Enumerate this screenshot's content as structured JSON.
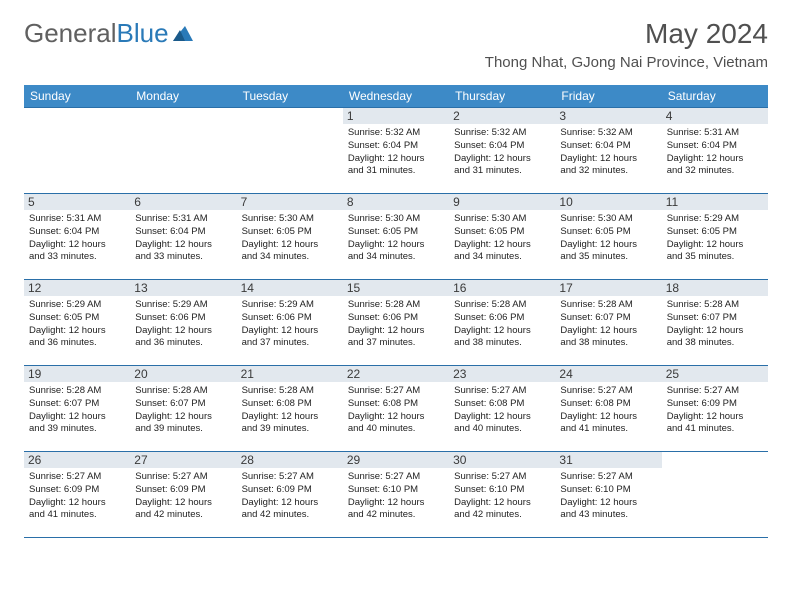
{
  "logo": {
    "text1": "General",
    "text2": "Blue"
  },
  "title": "May 2024",
  "location": "Thong Nhat, GJong Nai Province, Vietnam",
  "colors": {
    "header_bg": "#3d8ac7",
    "header_text": "#ffffff",
    "daynum_bg": "#e2e8ee",
    "border": "#2a6fa8",
    "logo_gray": "#606060",
    "logo_blue": "#2a7ab8"
  },
  "day_labels": [
    "Sunday",
    "Monday",
    "Tuesday",
    "Wednesday",
    "Thursday",
    "Friday",
    "Saturday"
  ],
  "weeks": [
    [
      {
        "n": "",
        "sr": "",
        "ss": "",
        "dl1": "",
        "dl2": "",
        "empty": true
      },
      {
        "n": "",
        "sr": "",
        "ss": "",
        "dl1": "",
        "dl2": "",
        "empty": true
      },
      {
        "n": "",
        "sr": "",
        "ss": "",
        "dl1": "",
        "dl2": "",
        "empty": true
      },
      {
        "n": "1",
        "sr": "Sunrise: 5:32 AM",
        "ss": "Sunset: 6:04 PM",
        "dl1": "Daylight: 12 hours",
        "dl2": "and 31 minutes."
      },
      {
        "n": "2",
        "sr": "Sunrise: 5:32 AM",
        "ss": "Sunset: 6:04 PM",
        "dl1": "Daylight: 12 hours",
        "dl2": "and 31 minutes."
      },
      {
        "n": "3",
        "sr": "Sunrise: 5:32 AM",
        "ss": "Sunset: 6:04 PM",
        "dl1": "Daylight: 12 hours",
        "dl2": "and 32 minutes."
      },
      {
        "n": "4",
        "sr": "Sunrise: 5:31 AM",
        "ss": "Sunset: 6:04 PM",
        "dl1": "Daylight: 12 hours",
        "dl2": "and 32 minutes."
      }
    ],
    [
      {
        "n": "5",
        "sr": "Sunrise: 5:31 AM",
        "ss": "Sunset: 6:04 PM",
        "dl1": "Daylight: 12 hours",
        "dl2": "and 33 minutes."
      },
      {
        "n": "6",
        "sr": "Sunrise: 5:31 AM",
        "ss": "Sunset: 6:04 PM",
        "dl1": "Daylight: 12 hours",
        "dl2": "and 33 minutes."
      },
      {
        "n": "7",
        "sr": "Sunrise: 5:30 AM",
        "ss": "Sunset: 6:05 PM",
        "dl1": "Daylight: 12 hours",
        "dl2": "and 34 minutes."
      },
      {
        "n": "8",
        "sr": "Sunrise: 5:30 AM",
        "ss": "Sunset: 6:05 PM",
        "dl1": "Daylight: 12 hours",
        "dl2": "and 34 minutes."
      },
      {
        "n": "9",
        "sr": "Sunrise: 5:30 AM",
        "ss": "Sunset: 6:05 PM",
        "dl1": "Daylight: 12 hours",
        "dl2": "and 34 minutes."
      },
      {
        "n": "10",
        "sr": "Sunrise: 5:30 AM",
        "ss": "Sunset: 6:05 PM",
        "dl1": "Daylight: 12 hours",
        "dl2": "and 35 minutes."
      },
      {
        "n": "11",
        "sr": "Sunrise: 5:29 AM",
        "ss": "Sunset: 6:05 PM",
        "dl1": "Daylight: 12 hours",
        "dl2": "and 35 minutes."
      }
    ],
    [
      {
        "n": "12",
        "sr": "Sunrise: 5:29 AM",
        "ss": "Sunset: 6:05 PM",
        "dl1": "Daylight: 12 hours",
        "dl2": "and 36 minutes."
      },
      {
        "n": "13",
        "sr": "Sunrise: 5:29 AM",
        "ss": "Sunset: 6:06 PM",
        "dl1": "Daylight: 12 hours",
        "dl2": "and 36 minutes."
      },
      {
        "n": "14",
        "sr": "Sunrise: 5:29 AM",
        "ss": "Sunset: 6:06 PM",
        "dl1": "Daylight: 12 hours",
        "dl2": "and 37 minutes."
      },
      {
        "n": "15",
        "sr": "Sunrise: 5:28 AM",
        "ss": "Sunset: 6:06 PM",
        "dl1": "Daylight: 12 hours",
        "dl2": "and 37 minutes."
      },
      {
        "n": "16",
        "sr": "Sunrise: 5:28 AM",
        "ss": "Sunset: 6:06 PM",
        "dl1": "Daylight: 12 hours",
        "dl2": "and 38 minutes."
      },
      {
        "n": "17",
        "sr": "Sunrise: 5:28 AM",
        "ss": "Sunset: 6:07 PM",
        "dl1": "Daylight: 12 hours",
        "dl2": "and 38 minutes."
      },
      {
        "n": "18",
        "sr": "Sunrise: 5:28 AM",
        "ss": "Sunset: 6:07 PM",
        "dl1": "Daylight: 12 hours",
        "dl2": "and 38 minutes."
      }
    ],
    [
      {
        "n": "19",
        "sr": "Sunrise: 5:28 AM",
        "ss": "Sunset: 6:07 PM",
        "dl1": "Daylight: 12 hours",
        "dl2": "and 39 minutes."
      },
      {
        "n": "20",
        "sr": "Sunrise: 5:28 AM",
        "ss": "Sunset: 6:07 PM",
        "dl1": "Daylight: 12 hours",
        "dl2": "and 39 minutes."
      },
      {
        "n": "21",
        "sr": "Sunrise: 5:28 AM",
        "ss": "Sunset: 6:08 PM",
        "dl1": "Daylight: 12 hours",
        "dl2": "and 39 minutes."
      },
      {
        "n": "22",
        "sr": "Sunrise: 5:27 AM",
        "ss": "Sunset: 6:08 PM",
        "dl1": "Daylight: 12 hours",
        "dl2": "and 40 minutes."
      },
      {
        "n": "23",
        "sr": "Sunrise: 5:27 AM",
        "ss": "Sunset: 6:08 PM",
        "dl1": "Daylight: 12 hours",
        "dl2": "and 40 minutes."
      },
      {
        "n": "24",
        "sr": "Sunrise: 5:27 AM",
        "ss": "Sunset: 6:08 PM",
        "dl1": "Daylight: 12 hours",
        "dl2": "and 41 minutes."
      },
      {
        "n": "25",
        "sr": "Sunrise: 5:27 AM",
        "ss": "Sunset: 6:09 PM",
        "dl1": "Daylight: 12 hours",
        "dl2": "and 41 minutes."
      }
    ],
    [
      {
        "n": "26",
        "sr": "Sunrise: 5:27 AM",
        "ss": "Sunset: 6:09 PM",
        "dl1": "Daylight: 12 hours",
        "dl2": "and 41 minutes."
      },
      {
        "n": "27",
        "sr": "Sunrise: 5:27 AM",
        "ss": "Sunset: 6:09 PM",
        "dl1": "Daylight: 12 hours",
        "dl2": "and 42 minutes."
      },
      {
        "n": "28",
        "sr": "Sunrise: 5:27 AM",
        "ss": "Sunset: 6:09 PM",
        "dl1": "Daylight: 12 hours",
        "dl2": "and 42 minutes."
      },
      {
        "n": "29",
        "sr": "Sunrise: 5:27 AM",
        "ss": "Sunset: 6:10 PM",
        "dl1": "Daylight: 12 hours",
        "dl2": "and 42 minutes."
      },
      {
        "n": "30",
        "sr": "Sunrise: 5:27 AM",
        "ss": "Sunset: 6:10 PM",
        "dl1": "Daylight: 12 hours",
        "dl2": "and 42 minutes."
      },
      {
        "n": "31",
        "sr": "Sunrise: 5:27 AM",
        "ss": "Sunset: 6:10 PM",
        "dl1": "Daylight: 12 hours",
        "dl2": "and 43 minutes."
      },
      {
        "n": "",
        "sr": "",
        "ss": "",
        "dl1": "",
        "dl2": "",
        "empty": true
      }
    ]
  ]
}
